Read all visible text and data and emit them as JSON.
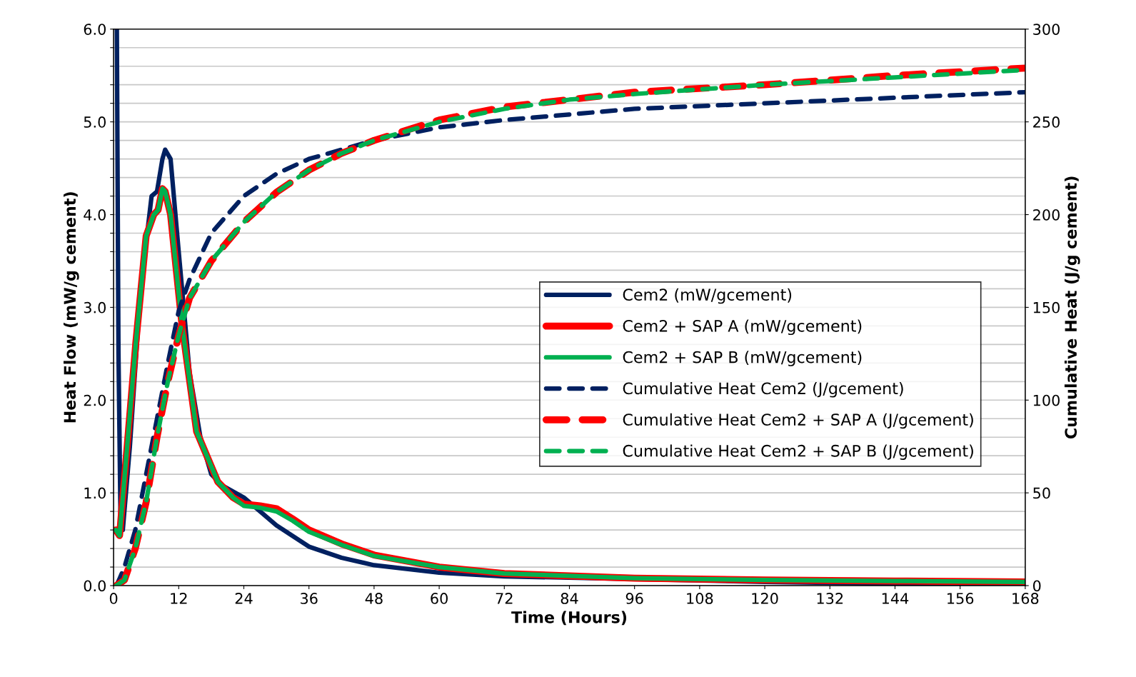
{
  "chart_data": {
    "type": "line",
    "xlabel": "Time (Hours)",
    "ylabel": "Heat Flow (mW/g cement)",
    "y2label": "Cumulative Heat (J/g cement)",
    "xlim": [
      0,
      168
    ],
    "xticks": [
      0,
      12,
      24,
      36,
      48,
      60,
      72,
      84,
      96,
      108,
      120,
      132,
      144,
      156,
      168
    ],
    "ylim": [
      0,
      6
    ],
    "yticks": [
      {
        "value": 0,
        "label": "0.0"
      },
      {
        "value": 0.2,
        "label": null
      },
      {
        "value": 0.4,
        "label": null
      },
      {
        "value": 0.6,
        "label": null
      },
      {
        "value": 0.8,
        "label": null
      },
      {
        "value": 1,
        "label": "1.0"
      },
      {
        "value": 1.2,
        "label": null
      },
      {
        "value": 1.4,
        "label": null
      },
      {
        "value": 1.6,
        "label": null
      },
      {
        "value": 1.8,
        "label": null
      },
      {
        "value": 2,
        "label": "2.0"
      },
      {
        "value": 2.2,
        "label": null
      },
      {
        "value": 2.4,
        "label": null
      },
      {
        "value": 2.6,
        "label": null
      },
      {
        "value": 2.8,
        "label": null
      },
      {
        "value": 3,
        "label": "3.0"
      },
      {
        "value": 3.2,
        "label": null
      },
      {
        "value": 3.4,
        "label": null
      },
      {
        "value": 3.6,
        "label": null
      },
      {
        "value": 3.8,
        "label": null
      },
      {
        "value": 4,
        "label": "4.0"
      },
      {
        "value": 4.2,
        "label": null
      },
      {
        "value": 4.4,
        "label": null
      },
      {
        "value": 4.6,
        "label": null
      },
      {
        "value": 4.8,
        "label": null
      },
      {
        "value": 5,
        "label": "5.0"
      },
      {
        "value": 5.2,
        "label": null
      },
      {
        "value": 5.4,
        "label": null
      },
      {
        "value": 5.6,
        "label": null
      },
      {
        "value": 5.8,
        "label": null
      },
      {
        "value": 6,
        "label": "6.0"
      }
    ],
    "y2lim": [
      0,
      300
    ],
    "y2ticks": [
      0,
      50,
      100,
      150,
      200,
      250,
      300
    ],
    "grid": "y",
    "legend": "right",
    "series": [
      {
        "name": "Cem2 (mW/gcement)",
        "color": "#002060",
        "line_style": "solid",
        "x": [
          0.6,
          0.9,
          1.3,
          1.7,
          3,
          5,
          7,
          8,
          9,
          9.5,
          10.5,
          12,
          14,
          16,
          18,
          20,
          24,
          30,
          36,
          42,
          48,
          60,
          72,
          96,
          120,
          144,
          168
        ],
        "values": [
          6.0,
          2.5,
          0.6,
          0.6,
          1.5,
          3.2,
          4.2,
          4.25,
          4.6,
          4.7,
          4.6,
          3.6,
          2.3,
          1.6,
          1.2,
          1.08,
          0.95,
          0.65,
          0.42,
          0.3,
          0.22,
          0.14,
          0.1,
          0.07,
          0.04,
          0.02,
          0.015
        ]
      },
      {
        "name": "Cem2 + SAP A (mW/gcement)",
        "color": "#ff0000",
        "line_style": "solid",
        "x": [
          0.4,
          1.1,
          2.5,
          4.1,
          6,
          7.4,
          8.2,
          9,
          9.5,
          10.5,
          12.6,
          15.3,
          19.2,
          22,
          24,
          27,
          30,
          33,
          36,
          42,
          48,
          60,
          72,
          96,
          120,
          144,
          168
        ],
        "values": [
          0.6,
          0.54,
          1.5,
          2.62,
          3.77,
          4.0,
          4.05,
          4.28,
          4.25,
          4.0,
          2.81,
          1.66,
          1.12,
          0.95,
          0.88,
          0.86,
          0.83,
          0.72,
          0.6,
          0.45,
          0.33,
          0.2,
          0.13,
          0.08,
          0.06,
          0.05,
          0.04
        ]
      },
      {
        "name": "Cem2 + SAP B (mW/gcement)",
        "color": "#00b050",
        "line_style": "solid",
        "x": [
          0.4,
          1.1,
          2.5,
          4.1,
          6,
          7.4,
          8.2,
          9,
          9.5,
          10.5,
          12.6,
          15.3,
          19.2,
          22,
          24,
          27,
          30,
          33,
          36,
          42,
          48,
          60,
          72,
          96,
          120,
          144,
          168
        ],
        "values": [
          0.6,
          0.54,
          1.5,
          2.62,
          3.77,
          4.0,
          4.05,
          4.28,
          4.25,
          4.0,
          2.81,
          1.66,
          1.12,
          0.95,
          0.86,
          0.84,
          0.8,
          0.7,
          0.58,
          0.44,
          0.32,
          0.2,
          0.13,
          0.08,
          0.06,
          0.05,
          0.04
        ]
      },
      {
        "name": "Cumulative Heat Cem2 (J/gcement)",
        "color": "#002060",
        "line_style": "dashed",
        "axis": "y2",
        "x": [
          0.5,
          1,
          2,
          4,
          6,
          8,
          10,
          12,
          14,
          18,
          24,
          30,
          36,
          42,
          48,
          60,
          72,
          84,
          96,
          120,
          144,
          168
        ],
        "values": [
          0,
          3,
          10,
          30,
          60,
          90,
          120,
          148,
          165,
          190,
          210,
          222,
          230,
          235,
          240,
          247,
          251,
          254,
          257,
          260,
          263,
          266
        ]
      },
      {
        "name": "Cumulative Heat Cem2 + SAP A (J/gcement)",
        "color": "#ff0000",
        "line_style": "dashed",
        "axis": "y2",
        "x": [
          0.5,
          2,
          4,
          6,
          8,
          10,
          12,
          14,
          18,
          24,
          30,
          36,
          42,
          48,
          60,
          72,
          84,
          96,
          120,
          144,
          168
        ],
        "values": [
          0,
          3,
          20,
          45,
          80,
          110,
          135,
          155,
          175,
          196,
          212,
          224,
          233,
          240,
          251,
          258,
          262,
          266,
          270,
          275,
          279
        ]
      },
      {
        "name": "Cumulative Heat Cem2 + SAP B (J/gcement)",
        "color": "#00b050",
        "line_style": "dashed",
        "axis": "y2",
        "x": [
          0.5,
          2,
          4,
          6,
          8,
          10,
          12,
          14,
          18,
          24,
          30,
          36,
          42,
          48,
          60,
          72,
          84,
          96,
          120,
          144,
          168
        ],
        "values": [
          0,
          3,
          20,
          45,
          80,
          110,
          135,
          155,
          175,
          196,
          212,
          224,
          233,
          240,
          250,
          257,
          262,
          265,
          270,
          274,
          278
        ]
      }
    ]
  }
}
